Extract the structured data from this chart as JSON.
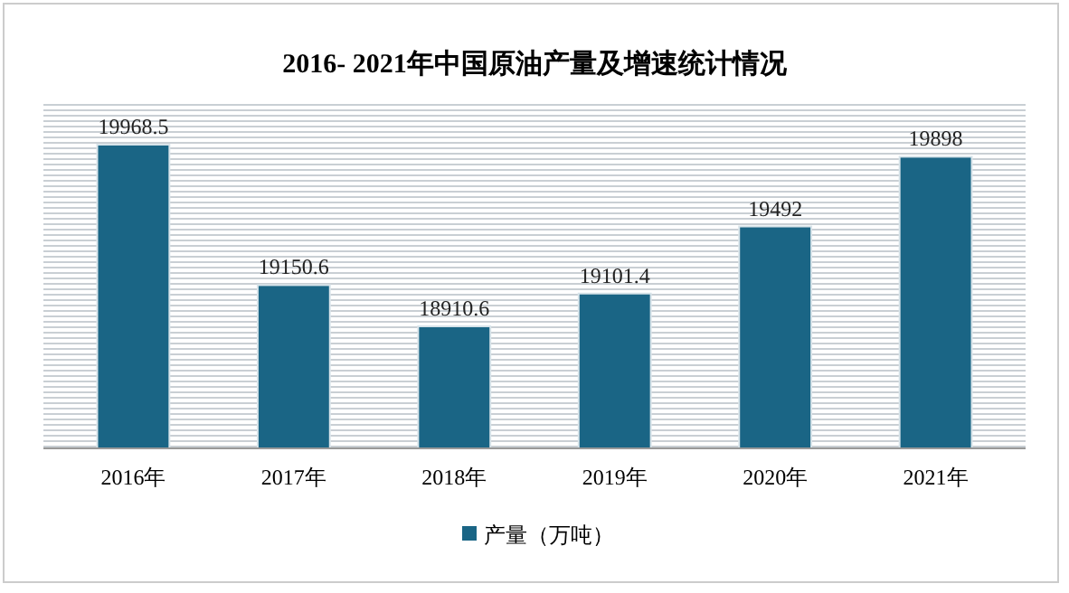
{
  "chart_data": {
    "type": "bar",
    "title": "2016- 2021年中国原油产量及增速统计情况",
    "categories": [
      "2016年",
      "2017年",
      "2018年",
      "2019年",
      "2020年",
      "2021年"
    ],
    "series": [
      {
        "name": "产量（万吨）",
        "color": "#1a6585",
        "values": [
          19968.5,
          19150.6,
          18910.6,
          19101.4,
          19492,
          19898
        ]
      }
    ],
    "ylim": [
      18200,
      20200
    ],
    "tick_labels": "x",
    "data_labels": true,
    "legend": "bottom"
  }
}
